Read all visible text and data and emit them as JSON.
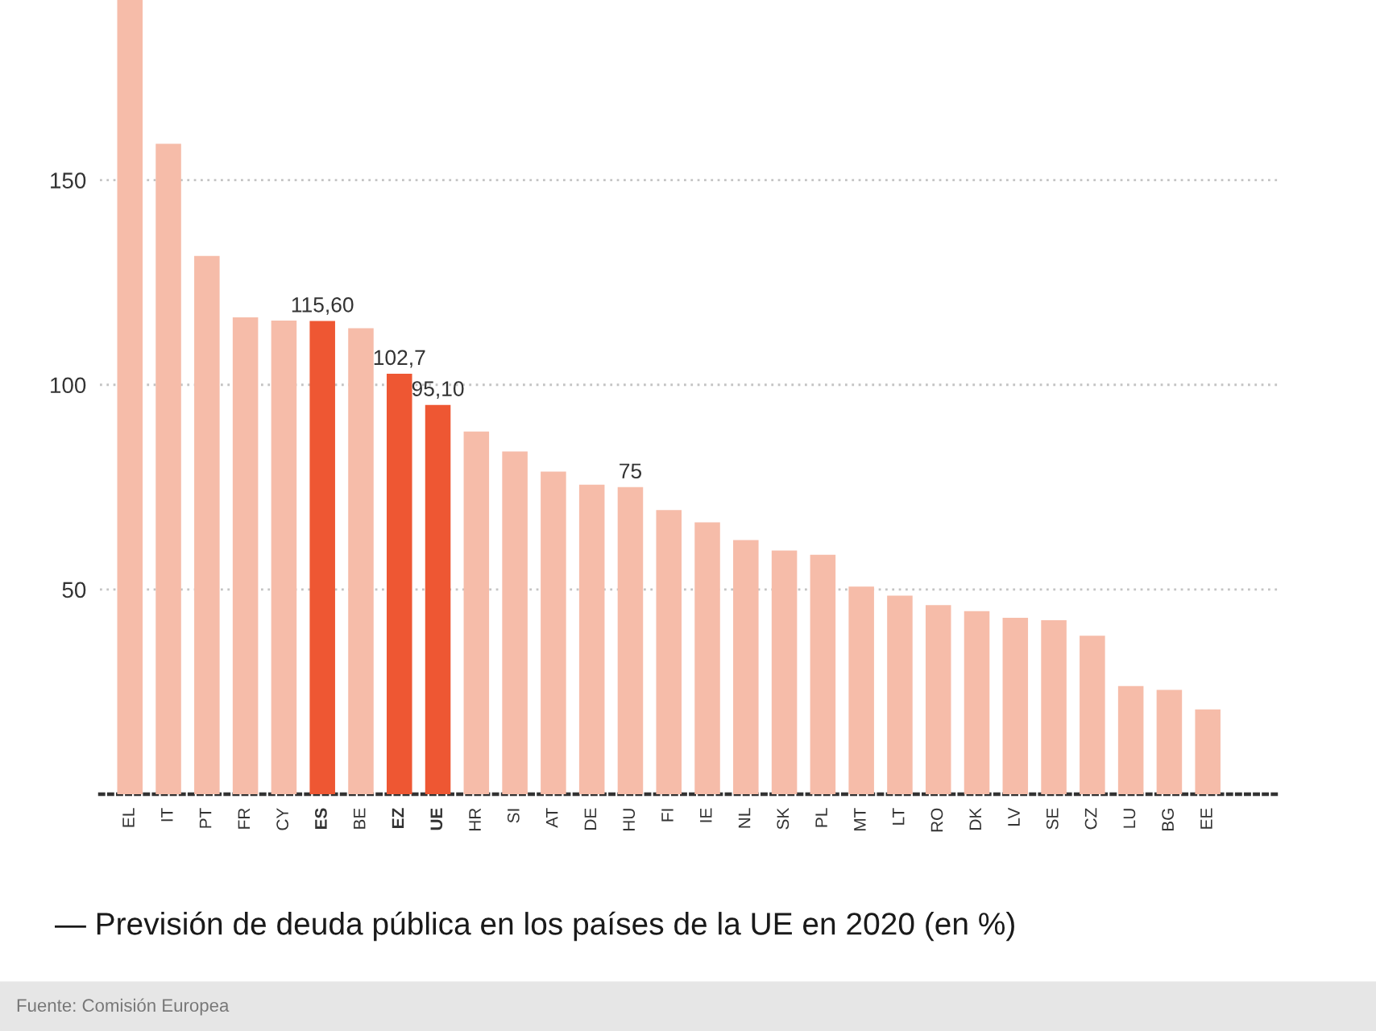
{
  "chart_data": {
    "type": "bar",
    "title": "— Previsión de deuda pública en los países de la UE en 2020 (en %)",
    "categories": [
      "EL",
      "IT",
      "PT",
      "FR",
      "CY",
      "ES",
      "BE",
      "EZ",
      "UE",
      "HR",
      "SI",
      "AT",
      "DE",
      "HU",
      "FI",
      "IE",
      "NL",
      "SK",
      "PL",
      "MT",
      "LT",
      "RO",
      "DK",
      "LV",
      "SE",
      "CZ",
      "LU",
      "BG",
      "EE"
    ],
    "values": [
      194,
      158.9,
      131.5,
      116.5,
      115.7,
      115.6,
      113.8,
      102.7,
      95.1,
      88.6,
      83.7,
      78.8,
      75.6,
      75,
      69.4,
      66.4,
      62.1,
      59.5,
      58.5,
      50.7,
      48.5,
      46.2,
      44.7,
      43.1,
      42.5,
      38.7,
      26.4,
      25.5,
      20.7
    ],
    "colors": [
      "#f6bca9",
      "#f6bca9",
      "#f6bca9",
      "#f6bca9",
      "#f6bca9",
      "#ee5733",
      "#f6bca9",
      "#ee5733",
      "#ee5733",
      "#f6bca9",
      "#f6bca9",
      "#f6bca9",
      "#f6bca9",
      "#f6bca9",
      "#f6bca9",
      "#f6bca9",
      "#f6bca9",
      "#f6bca9",
      "#f6bca9",
      "#f6bca9",
      "#f6bca9",
      "#f6bca9",
      "#f6bca9",
      "#f6bca9",
      "#f6bca9",
      "#f6bca9",
      "#f6bca9",
      "#f6bca9",
      "#f6bca9"
    ],
    "value_labels": [
      null,
      null,
      null,
      null,
      null,
      "115,60",
      null,
      "102,7",
      "95,10",
      null,
      null,
      null,
      null,
      "75",
      null,
      null,
      null,
      null,
      null,
      null,
      null,
      null,
      null,
      null,
      null,
      null,
      null,
      null,
      null
    ],
    "ylim": [
      0,
      194
    ],
    "yticks": [
      50,
      100,
      150
    ],
    "grid": "y",
    "annotations": [
      "Fuente: Comisión Europea"
    ]
  }
}
